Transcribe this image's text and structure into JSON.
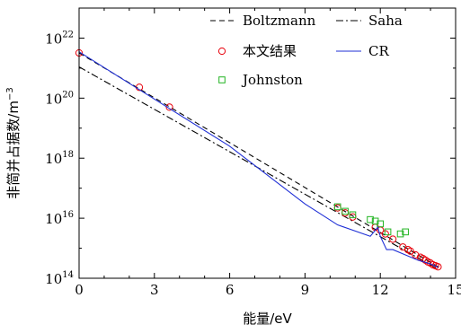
{
  "chart_data": {
    "type": "line",
    "title": "",
    "xlabel": "能量/eV",
    "ylabel": "非简并占据数/m",
    "ylabel_superscript": "−3",
    "xlim": [
      0,
      15
    ],
    "ylim_log10": [
      14,
      23
    ],
    "y_scale": "log",
    "grid": false,
    "legend_position": "top-right",
    "x_ticks": [
      0,
      3,
      6,
      9,
      12,
      15
    ],
    "x_tick_labels": [
      "0",
      "3",
      "6",
      "9",
      "12",
      "15"
    ],
    "y_major_ticks_log10": [
      14,
      16,
      18,
      20,
      22
    ],
    "y_tick_labels": [
      "10",
      "10",
      "10",
      "10",
      "10"
    ],
    "y_tick_exponents": [
      "14",
      "16",
      "18",
      "20",
      "22"
    ],
    "series": [
      {
        "name": "Boltzmann",
        "style": "dashed",
        "color": "#000000",
        "x": [
          0,
          14.3
        ],
        "y": [
          3.2e+21,
          240000000000000.0
        ]
      },
      {
        "name": "Saha",
        "style": "dashdot",
        "color": "#000000",
        "x": [
          0,
          14.3
        ],
        "y": [
          1.1e+21,
          200000000000000.0
        ]
      },
      {
        "name": "本文结果",
        "style": "marker",
        "marker": "circle",
        "color": "#e8000b",
        "x": [
          0,
          2.4,
          3.6,
          10.3,
          10.6,
          10.9,
          11.8,
          12.0,
          12.2,
          12.5,
          12.9,
          13.1,
          13.2,
          13.4,
          13.6,
          13.7,
          13.8,
          13.9,
          14.0,
          14.1,
          14.2,
          14.3
        ],
        "y": [
          3.2e+21,
          2.3e+20,
          5e+19,
          2.2e+16,
          1.5e+16,
          1.1e+16,
          5000000000000000.0,
          4000000000000000.0,
          3000000000000000.0,
          2000000000000000.0,
          1100000000000000.0,
          900000000000000.0,
          800000000000000.0,
          600000000000000.0,
          500000000000000.0,
          450000000000000.0,
          400000000000000.0,
          350000000000000.0,
          320000000000000.0,
          280000000000000.0,
          260000000000000.0,
          240000000000000.0
        ]
      },
      {
        "name": "Johnston",
        "style": "marker",
        "marker": "square",
        "color": "#22b422",
        "x": [
          10.3,
          10.6,
          10.9,
          11.6,
          11.8,
          12.0,
          12.3,
          12.8,
          13.0
        ],
        "y": [
          2.4e+16,
          1.7e+16,
          1.3e+16,
          9000000000000000.0,
          8000000000000000.0,
          6500000000000000.0,
          3500000000000000.0,
          3000000000000000.0,
          3500000000000000.0
        ]
      },
      {
        "name": "CR",
        "style": "solid",
        "color": "#1f2fd6",
        "x": [
          0,
          3.6,
          6.0,
          9.0,
          10.3,
          11.6,
          11.9,
          12.0,
          12.25,
          12.5,
          13.0,
          13.5,
          14.0,
          14.3
        ],
        "y": [
          3.5e+21,
          4.5e+19,
          2.5e+18,
          3e+16,
          6000000000000000.0,
          2500000000000000.0,
          5000000000000000.0,
          2500000000000000.0,
          900000000000000.0,
          900000000000000.0,
          600000000000000.0,
          400000000000000.0,
          300000000000000.0,
          230000000000000.0
        ]
      }
    ]
  }
}
